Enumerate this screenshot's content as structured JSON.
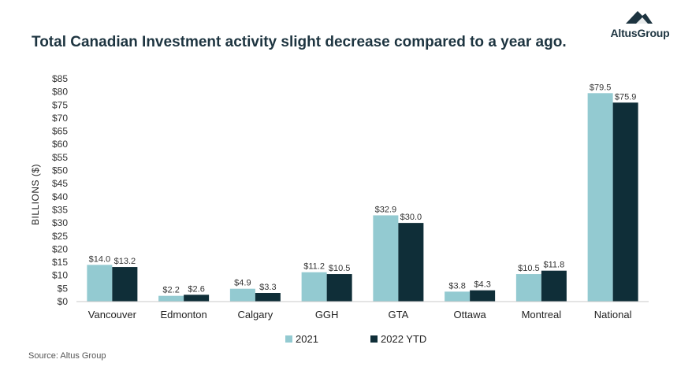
{
  "header": {
    "title": "Total Canadian Investment activity slight decrease compared to a year ago.",
    "logo_text": "AltusGroup",
    "logo_icon": "mountain-icon"
  },
  "footer": {
    "source": "Source:  Altus Group"
  },
  "colors": {
    "series_2021": "#93cad1",
    "series_2022": "#0f2e38",
    "title": "#1d3440"
  },
  "chart_data": {
    "type": "bar",
    "title": "Total Canadian Investment activity slight decrease compared to a year ago.",
    "xlabel": "",
    "ylabel": "BILLIONS ($)",
    "ylim": [
      0,
      85
    ],
    "ytick_step": 5,
    "ytick_labels": [
      "$0",
      "$5",
      "$10",
      "$15",
      "$20",
      "$25",
      "$30",
      "$35",
      "$40",
      "$45",
      "$50",
      "$55",
      "$60",
      "$65",
      "$70",
      "$75",
      "$80",
      "$85"
    ],
    "categories": [
      "Vancouver",
      "Edmonton",
      "Calgary",
      "GGH",
      "GTA",
      "Ottawa",
      "Montreal",
      "National"
    ],
    "series": [
      {
        "name": "2021",
        "color": "#93cad1",
        "values": [
          14.0,
          2.2,
          4.9,
          11.2,
          32.9,
          3.8,
          10.5,
          79.5
        ],
        "labels": [
          "$14.0",
          "$2.2",
          "$4.9",
          "$11.2",
          "$32.9",
          "$3.8",
          "$10.5",
          "$79.5"
        ]
      },
      {
        "name": "2022 YTD",
        "color": "#0f2e38",
        "values": [
          13.2,
          2.6,
          3.3,
          10.5,
          30.0,
          4.3,
          11.8,
          75.9
        ],
        "labels": [
          "$13.2",
          "$2.6",
          "$3.3",
          "$10.5",
          "$30.0",
          "$4.3",
          "$11.8",
          "$75.9"
        ]
      }
    ],
    "grid": false,
    "legend": "bottom-center"
  }
}
